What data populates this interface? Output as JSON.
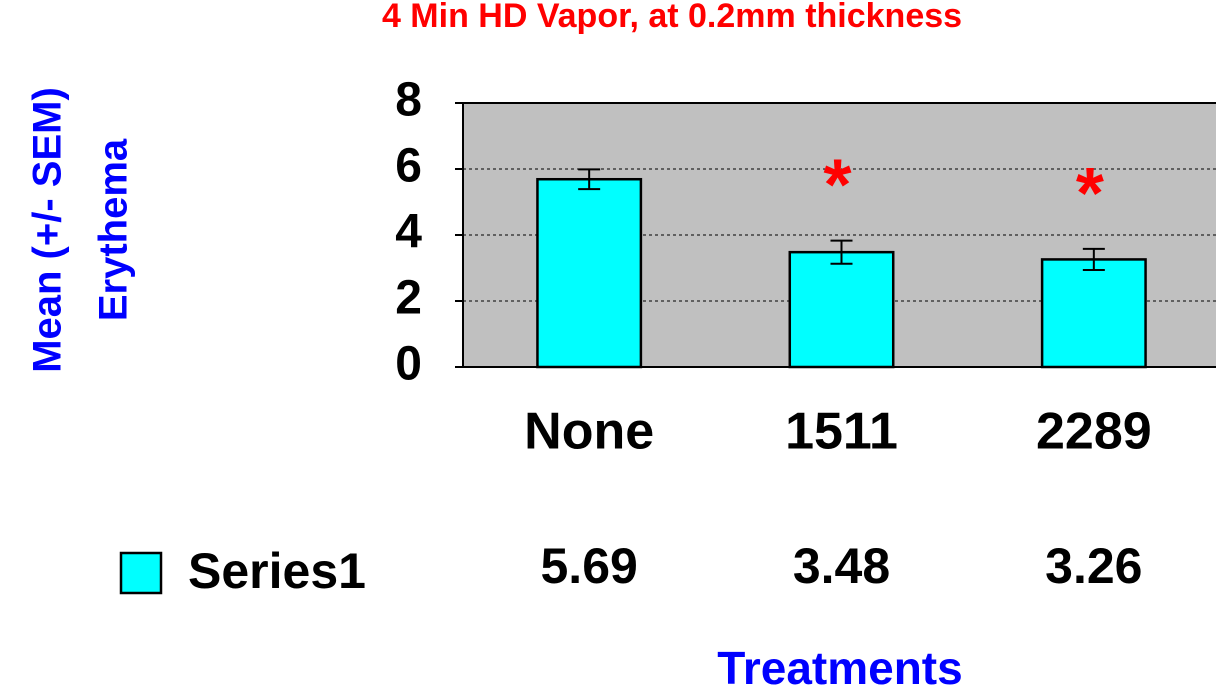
{
  "chart_data": {
    "type": "bar",
    "title": "4 Min HD Vapor, at 0.2mm thickness",
    "y_label_lines": [
      "Mean (+/- SEM)",
      "Erythema"
    ],
    "x_label": "Treatments",
    "categories": [
      "None",
      "1511",
      "2289"
    ],
    "series": [
      {
        "name": "Series1",
        "color": "#00ffff",
        "values": [
          5.69,
          3.48,
          3.26
        ],
        "errors": [
          0.3,
          0.35,
          0.32
        ]
      }
    ],
    "significance": [
      null,
      "*",
      "*"
    ],
    "ylim": [
      0,
      8
    ],
    "yticks": [
      0,
      2,
      4,
      6,
      8
    ],
    "grid": true,
    "data_table": true
  }
}
